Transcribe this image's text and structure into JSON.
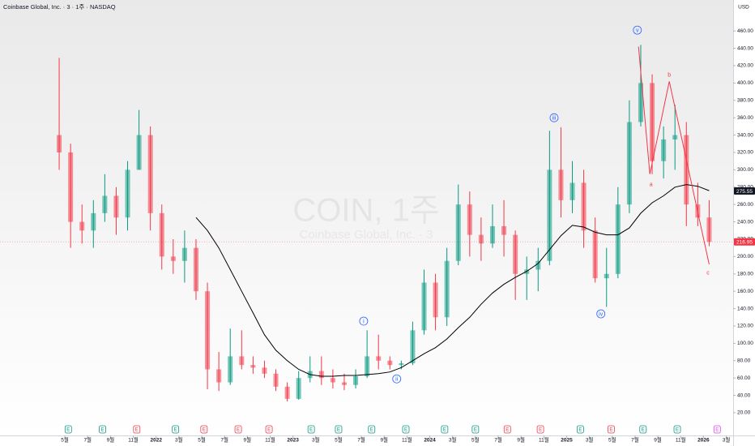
{
  "chart_data": {
    "type": "candlestick",
    "title": "Coinbase Global, Inc. · 3 · 1주 · NASDAQ",
    "watermark": "COIN, 1주",
    "watermark_subtitle": "Coinbase Global, Inc. · 3",
    "y_axis_unit": "USD",
    "up_color": "#089981",
    "down_color": "#f23645",
    "grid": false,
    "x": [
      3.5,
      4.5,
      5.5,
      6.5,
      7.5,
      8.5,
      9.5,
      10.5,
      11.5,
      12.5,
      13.5,
      14.5,
      15.5,
      16.5,
      17.5,
      18.5,
      19.5,
      20.5,
      21.5,
      22.5,
      23.5,
      24.5,
      25.5,
      26.5,
      27.5,
      28.5,
      29.5,
      30.5,
      31.5,
      32.5,
      33.5,
      34.5,
      35.5,
      36.5,
      37.5,
      38.5,
      39.5,
      40.5,
      41.5,
      42.5,
      43.5,
      44.5,
      45.5,
      46.5,
      47.5,
      48.5,
      49.5,
      50.5,
      51.5,
      52.5,
      53.5,
      54.5,
      55.5,
      56.5,
      57.5,
      58.5,
      59.5,
      60.5
    ],
    "open": [
      340,
      320,
      240,
      230,
      250,
      270,
      245,
      300,
      340,
      250,
      200,
      195,
      210,
      160,
      70,
      55,
      85,
      75,
      72,
      65,
      50,
      36,
      60,
      68,
      60,
      55,
      52,
      62,
      85,
      80,
      75,
      77,
      115,
      170,
      130,
      195,
      260,
      225,
      215,
      235,
      225,
      180,
      185,
      195,
      300,
      265,
      285,
      230,
      175,
      180,
      260,
      355,
      400,
      310,
      335,
      340,
      260,
      245
    ],
    "high": [
      429,
      330,
      260,
      265,
      295,
      280,
      310,
      369,
      350,
      260,
      220,
      230,
      220,
      170,
      90,
      117,
      115,
      85,
      80,
      70,
      55,
      68,
      85,
      85,
      70,
      65,
      70,
      115,
      110,
      85,
      80,
      125,
      185,
      180,
      210,
      283,
      275,
      245,
      260,
      265,
      230,
      200,
      210,
      345,
      349,
      310,
      300,
      245,
      210,
      280,
      380,
      444,
      410,
      350,
      375,
      355,
      285,
      265
    ],
    "low": [
      300,
      210,
      215,
      210,
      240,
      225,
      230,
      300,
      230,
      185,
      180,
      170,
      150,
      47,
      45,
      52,
      70,
      65,
      60,
      45,
      33,
      35,
      55,
      52,
      48,
      46,
      48,
      60,
      70,
      70,
      70,
      75,
      110,
      115,
      120,
      190,
      200,
      195,
      210,
      200,
      150,
      150,
      160,
      190,
      245,
      250,
      210,
      170,
      142,
      175,
      250,
      350,
      295,
      290,
      300,
      235,
      235,
      212
    ],
    "close": [
      320,
      240,
      230,
      250,
      270,
      245,
      300,
      340,
      250,
      200,
      195,
      210,
      160,
      70,
      55,
      85,
      75,
      72,
      65,
      50,
      36,
      60,
      68,
      60,
      55,
      52,
      62,
      85,
      80,
      75,
      77,
      115,
      170,
      130,
      195,
      260,
      225,
      215,
      235,
      225,
      180,
      185,
      195,
      300,
      265,
      285,
      230,
      175,
      180,
      260,
      355,
      400,
      310,
      335,
      340,
      260,
      245,
      217
    ],
    "moving_average": {
      "color": "#000000",
      "values": [
        null,
        null,
        null,
        null,
        null,
        null,
        null,
        null,
        null,
        null,
        null,
        null,
        245,
        230,
        210,
        185,
        160,
        135,
        110,
        92,
        80,
        70,
        64,
        62,
        62,
        63,
        63,
        64,
        65,
        67,
        72,
        80,
        88,
        95,
        105,
        118,
        130,
        145,
        158,
        168,
        176,
        183,
        192,
        208,
        224,
        236,
        234,
        228,
        225,
        225,
        233,
        250,
        262,
        270,
        280,
        283,
        281,
        276
      ]
    },
    "xlim": [
      -1.69,
      62.6
    ],
    "xticks": [
      {
        "value": 4,
        "label": "5월"
      },
      {
        "value": 6,
        "label": "7월"
      },
      {
        "value": 8,
        "label": "9월"
      },
      {
        "value": 10,
        "label": "11월"
      },
      {
        "value": 12,
        "label": "2022"
      },
      {
        "value": 14,
        "label": "3월"
      },
      {
        "value": 16,
        "label": "5월"
      },
      {
        "value": 18,
        "label": "7월"
      },
      {
        "value": 20,
        "label": "9월"
      },
      {
        "value": 22,
        "label": "11월"
      },
      {
        "value": 24,
        "label": "2023"
      },
      {
        "value": 26,
        "label": "3월"
      },
      {
        "value": 28,
        "label": "5월"
      },
      {
        "value": 30,
        "label": "7월"
      },
      {
        "value": 32,
        "label": "9월"
      },
      {
        "value": 34,
        "label": "11월"
      },
      {
        "value": 36,
        "label": "2024"
      },
      {
        "value": 38,
        "label": "3월"
      },
      {
        "value": 40,
        "label": "5월"
      },
      {
        "value": 42,
        "label": "7월"
      },
      {
        "value": 44,
        "label": "9월"
      },
      {
        "value": 46,
        "label": "11월"
      },
      {
        "value": 48,
        "label": "2025"
      },
      {
        "value": 50,
        "label": "3월"
      },
      {
        "value": 52,
        "label": "5월"
      },
      {
        "value": 54,
        "label": "7월"
      },
      {
        "value": 56,
        "label": "9월"
      },
      {
        "value": 58,
        "label": "11월"
      },
      {
        "value": 60,
        "label": "2026"
      },
      {
        "value": 62,
        "label": "3월"
      }
    ],
    "ylim": [
      -6.2,
      495.7
    ],
    "yticks": [
      {
        "value": 20,
        "label": "20.00"
      },
      {
        "value": 40,
        "label": "40.00"
      },
      {
        "value": 60,
        "label": "60.00"
      },
      {
        "value": 80,
        "label": "80.00"
      },
      {
        "value": 100,
        "label": "100.00"
      },
      {
        "value": 120,
        "label": "120.00"
      },
      {
        "value": 140,
        "label": "140.00"
      },
      {
        "value": 160,
        "label": "160.00"
      },
      {
        "value": 180,
        "label": "180.00"
      },
      {
        "value": 200,
        "label": "200.00"
      },
      {
        "value": 220,
        "label": "220.00"
      },
      {
        "value": 240,
        "label": "240.00"
      },
      {
        "value": 260,
        "label": "260.00"
      },
      {
        "value": 280,
        "label": "280.00"
      },
      {
        "value": 300,
        "label": "300.00"
      },
      {
        "value": 320,
        "label": "320.00"
      },
      {
        "value": 340,
        "label": "340.00"
      },
      {
        "value": 360,
        "label": "360.00"
      },
      {
        "value": 380,
        "label": "380.00"
      },
      {
        "value": 400,
        "label": "400.00"
      },
      {
        "value": 420,
        "label": "420.00"
      },
      {
        "value": 440,
        "label": "440.00"
      },
      {
        "value": 460,
        "label": "460.00"
      }
    ],
    "annotations": [
      {
        "text": "i",
        "x": 30.2,
        "y": 125.6,
        "color": "#2962ff",
        "circled": true
      },
      {
        "text": "ii",
        "x": 33.1,
        "y": 59,
        "color": "#2962ff",
        "circled": true
      },
      {
        "text": "iii",
        "x": 46.9,
        "y": 360,
        "color": "#2962ff",
        "circled": true
      },
      {
        "text": "iv",
        "x": 51,
        "y": 134,
        "color": "#2962ff",
        "circled": true
      },
      {
        "text": "v",
        "x": 54.2,
        "y": 461,
        "color": "#2962ff",
        "circled": true
      },
      {
        "text": "a",
        "x": 55.4,
        "y": 283.5,
        "color": "#f23645",
        "circled": false
      },
      {
        "text": "b",
        "x": 57,
        "y": 409.7,
        "color": "#f23645",
        "circled": false
      },
      {
        "text": "c",
        "x": 60.4,
        "y": 181.7,
        "color": "#f23645",
        "circled": false
      }
    ],
    "wave_line": {
      "color": "#f23645",
      "x": [
        54.3,
        55.3,
        57,
        60.5
      ],
      "y": [
        442,
        295,
        402,
        191
      ]
    },
    "price_markers": [
      {
        "value": 275.55,
        "color": "#131722",
        "dashed_line": false
      },
      {
        "value": 216.95,
        "color": "#f23645",
        "dashed_line": true
      }
    ],
    "events": [
      {
        "x": 4.3,
        "label": "E",
        "color": "#089981"
      },
      {
        "x": 7.3,
        "label": "E",
        "color": "#089981"
      },
      {
        "x": 10.3,
        "label": "E",
        "color": "#f23645"
      },
      {
        "x": 13.7,
        "label": "E",
        "color": "#089981"
      },
      {
        "x": 16.2,
        "label": "E",
        "color": "#f23645"
      },
      {
        "x": 19.2,
        "label": "E",
        "color": "#f23645"
      },
      {
        "x": 21.9,
        "label": "E",
        "color": "#f23645"
      },
      {
        "x": 25.6,
        "label": "E",
        "color": "#089981"
      },
      {
        "x": 28.0,
        "label": "E",
        "color": "#089981"
      },
      {
        "x": 30.9,
        "label": "E",
        "color": "#089981"
      },
      {
        "x": 33.9,
        "label": "E",
        "color": "#089981"
      },
      {
        "x": 37.3,
        "label": "E",
        "color": "#089981"
      },
      {
        "x": 40.0,
        "label": "E",
        "color": "#089981"
      },
      {
        "x": 42.8,
        "label": "E",
        "color": "#f23645"
      },
      {
        "x": 45.7,
        "label": "E",
        "color": "#f23645"
      },
      {
        "x": 49.2,
        "label": "E",
        "color": "#089981"
      },
      {
        "x": 51.9,
        "label": "E",
        "color": "#f23645"
      },
      {
        "x": 54.7,
        "label": "E",
        "color": "#089981"
      },
      {
        "x": 57.7,
        "label": "E",
        "color": "#089981"
      },
      {
        "x": 61.2,
        "label": "E",
        "color": "#e040fb"
      }
    ]
  }
}
